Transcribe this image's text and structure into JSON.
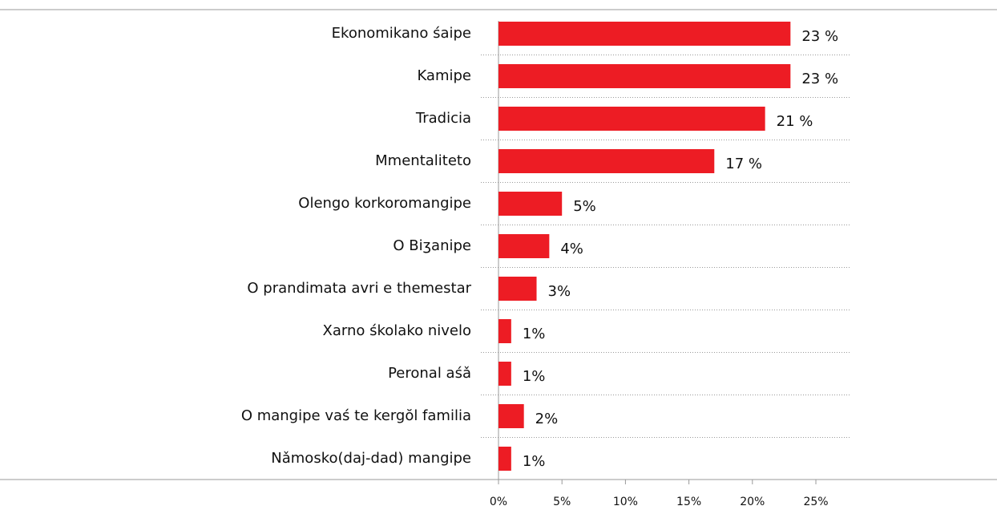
{
  "chart_data": {
    "type": "bar",
    "orientation": "horizontal",
    "categories": [
      "Ekonomikano śaipe",
      "Kamipe",
      "Tradicia",
      "Mmentaliteto",
      "Olengo korkoromangipe",
      "O Biʒanipe",
      "O prandimata avri e themestar",
      "Xarno śkolako nivelo",
      "Peronal aśǎ",
      "O mangipe vaś te kergŏl familia",
      "Nǎmosko(daj-dad) mangipe"
    ],
    "values": [
      23,
      23,
      21,
      17,
      5,
      4,
      3,
      1,
      1,
      2,
      1
    ],
    "value_labels": [
      "23 %",
      "23 %",
      "21 %",
      "17 %",
      "5%",
      "4%",
      "3%",
      "1%",
      "1%",
      "2%",
      "1%"
    ],
    "color": "#ed1c24",
    "xlim": [
      0,
      25
    ],
    "xticks": [
      {
        "value": 0,
        "label": "0%"
      },
      {
        "value": 5,
        "label": "5%"
      },
      {
        "value": 10,
        "label": "10%"
      },
      {
        "value": 15,
        "label": "15%"
      },
      {
        "value": 20,
        "label": "20%"
      },
      {
        "value": 25,
        "label": "25%"
      }
    ],
    "grid": true
  }
}
